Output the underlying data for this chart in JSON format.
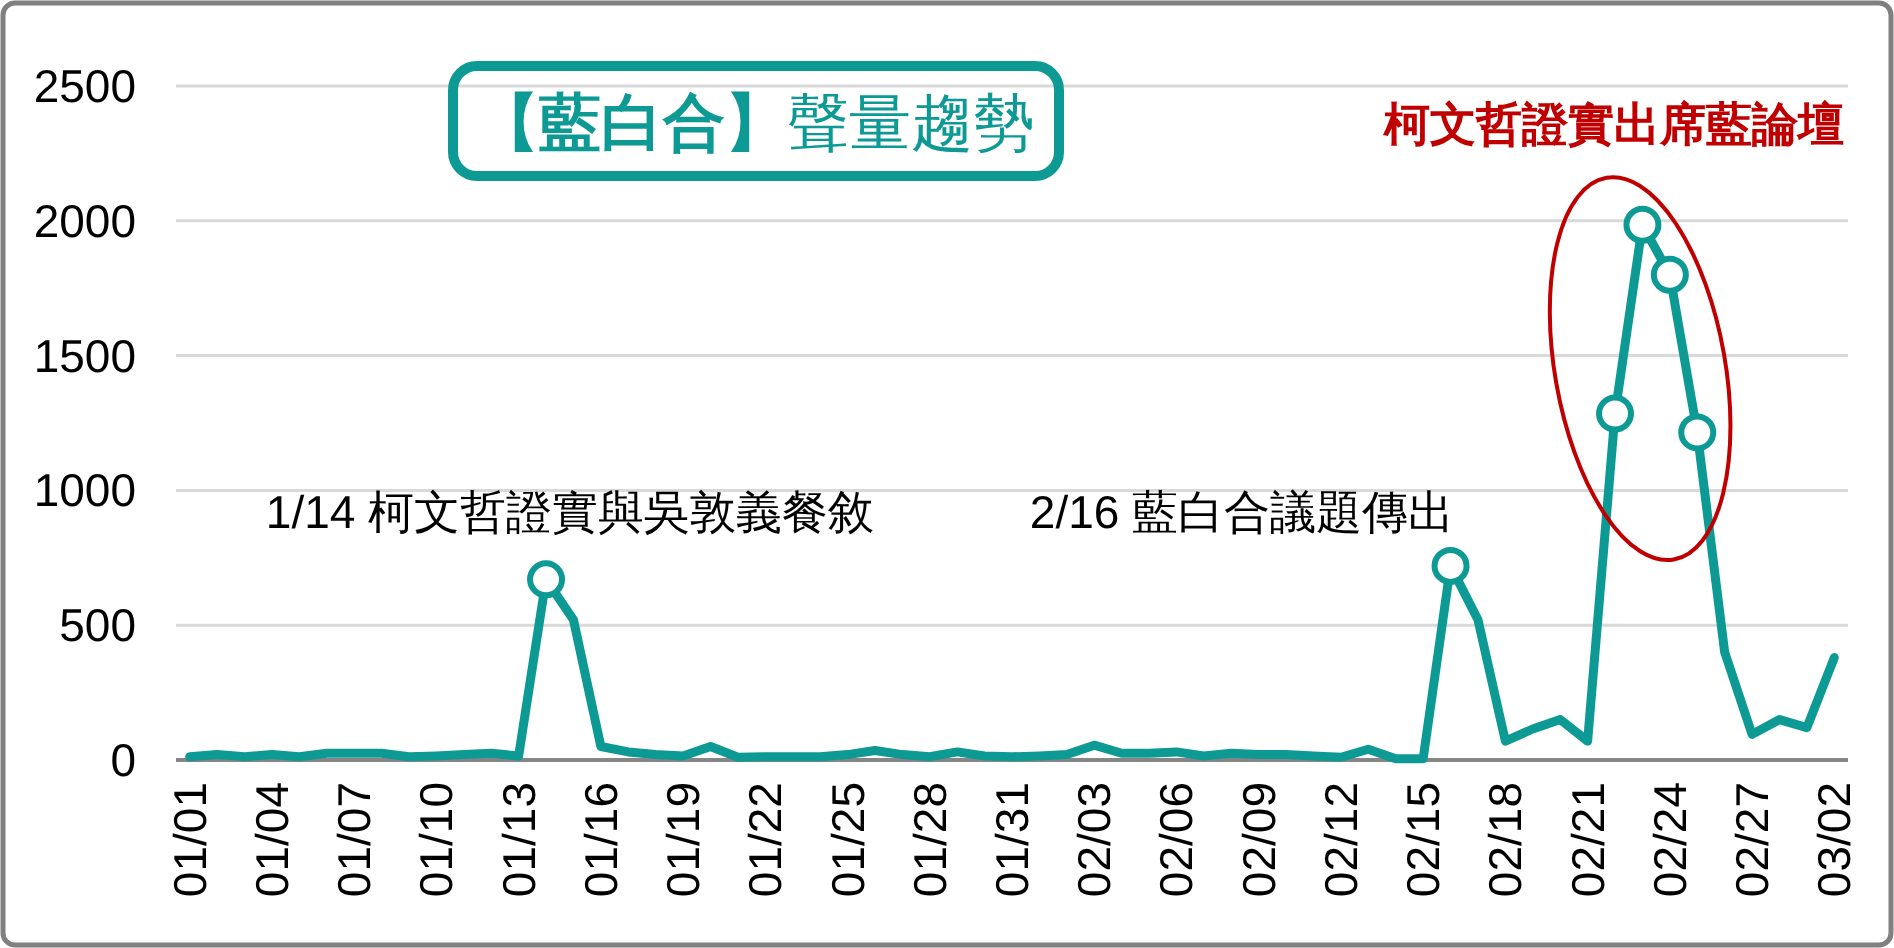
{
  "chart_data": {
    "type": "line",
    "title": "【藍白合】聲量趨勢",
    "categories": [
      "01/01",
      null,
      null,
      "01/04",
      null,
      null,
      "01/07",
      null,
      null,
      "01/10",
      null,
      null,
      "01/13",
      null,
      null,
      "01/16",
      null,
      null,
      "01/19",
      null,
      null,
      "01/22",
      null,
      null,
      "01/25",
      null,
      null,
      "01/28",
      null,
      null,
      "01/31",
      null,
      null,
      "02/03",
      null,
      null,
      "02/06",
      null,
      null,
      "02/09",
      null,
      null,
      "02/12",
      null,
      null,
      "02/15",
      null,
      null,
      "02/18",
      null,
      null,
      "02/21",
      null,
      null,
      "02/24",
      null,
      null,
      "02/27",
      null,
      null,
      "03/02"
    ],
    "series": [
      {
        "type": "line",
        "color": "#0e9a94",
        "values": [
          12,
          20,
          12,
          20,
          12,
          25,
          25,
          25,
          12,
          15,
          20,
          25,
          15,
          670,
          520,
          50,
          30,
          20,
          15,
          50,
          10,
          12,
          12,
          12,
          20,
          35,
          20,
          12,
          30,
          15,
          12,
          15,
          20,
          55,
          25,
          25,
          30,
          15,
          25,
          20,
          20,
          15,
          10,
          40,
          5,
          5,
          720,
          520,
          70,
          115,
          150,
          70,
          1285,
          1985,
          1800,
          1215,
          400,
          95,
          150,
          120,
          380
        ]
      },
      {
        "type": "scatter",
        "color": "#0e9a94",
        "marker": "circle",
        "values": [
          null,
          null,
          null,
          null,
          null,
          null,
          null,
          null,
          null,
          null,
          null,
          null,
          null,
          670,
          null,
          null,
          null,
          null,
          null,
          null,
          null,
          null,
          null,
          null,
          null,
          null,
          null,
          null,
          null,
          null,
          null,
          null,
          null,
          null,
          null,
          null,
          null,
          null,
          null,
          null,
          null,
          null,
          null,
          null,
          null,
          null,
          720,
          null,
          null,
          null,
          null,
          null,
          1285,
          1985,
          1800,
          1215,
          null,
          null,
          null,
          null,
          null
        ]
      }
    ],
    "ylim": [
      0,
      2500
    ],
    "yticks": [
      0,
      500,
      1000,
      1500,
      2000,
      2500
    ],
    "grid": "y",
    "annotations": [
      "1/14 柯文哲證實與吳敦義餐敘",
      "2/16 藍白合議題傳出",
      "柯文哲證實出席藍論壇"
    ]
  }
}
